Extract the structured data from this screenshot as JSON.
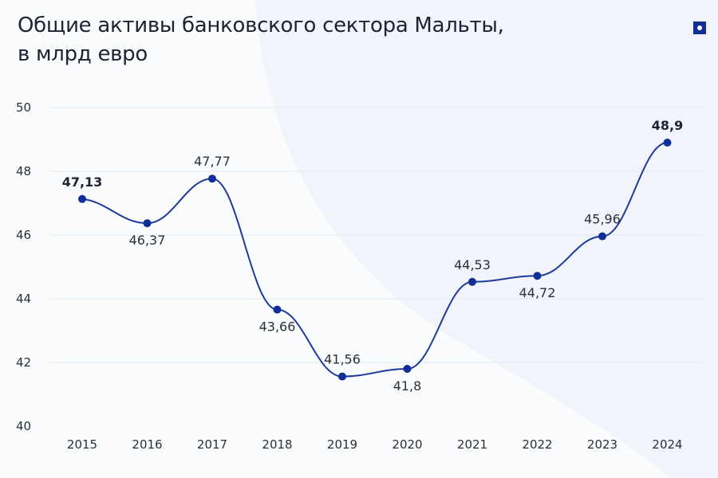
{
  "title_line1": "Общие активы банковского сектора Мальты,",
  "title_line2": "в млрд евро",
  "colors": {
    "line": "#1e3a9e",
    "marker": "#0f2f96",
    "grid": "#e3e7ef",
    "badge": "#0f2f96"
  },
  "badge_icon": "square-dot-icon",
  "chart_data": {
    "type": "line",
    "title": "Общие активы банковского сектора Мальты, в млрд евро",
    "categories": [
      "2015",
      "2016",
      "2017",
      "2018",
      "2019",
      "2020",
      "2021",
      "2022",
      "2023",
      "2024"
    ],
    "values": [
      47.13,
      46.37,
      47.77,
      43.66,
      41.56,
      41.8,
      44.53,
      44.72,
      45.96,
      48.9
    ],
    "data_labels": [
      "47,13",
      "46,37",
      "47,77",
      "43,66",
      "41,56",
      "41,8",
      "44,53",
      "44,72",
      "45,96",
      "48,9"
    ],
    "label_position": [
      "above",
      "below",
      "above",
      "below",
      "above",
      "below",
      "above",
      "below",
      "above",
      "above"
    ],
    "bold_labels": [
      true,
      false,
      false,
      false,
      false,
      false,
      false,
      false,
      false,
      true
    ],
    "yticks": [
      "40",
      "42",
      "44",
      "46",
      "48",
      "50"
    ],
    "ylim": [
      40,
      50
    ],
    "grid": true,
    "smooth": true
  }
}
